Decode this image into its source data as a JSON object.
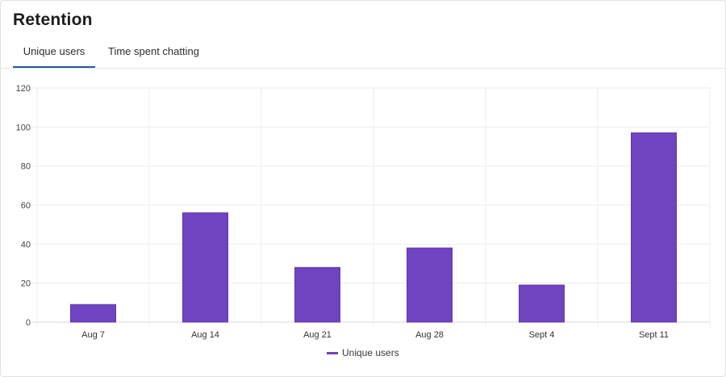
{
  "page": {
    "title": "Retention",
    "tabs": [
      {
        "label": "Unique users",
        "active": true
      },
      {
        "label": "Time spent chatting",
        "active": false
      }
    ]
  },
  "colors": {
    "bar": "#7043c1",
    "bar_border": "#6138b0",
    "tab_active_underline": "#1f5c99",
    "grid": "#ececec"
  },
  "chart_data": {
    "type": "bar",
    "categories": [
      "Aug 7",
      "Aug 14",
      "Aug 21",
      "Aug 28",
      "Sept 4",
      "Sept 11"
    ],
    "series": [
      {
        "name": "Unique users",
        "values": [
          9,
          56,
          28,
          38,
          19,
          97
        ]
      }
    ],
    "ylim": [
      0,
      120
    ],
    "yticks": [
      0,
      20,
      40,
      60,
      80,
      100,
      120
    ],
    "grid": true,
    "legend": "bottom"
  }
}
